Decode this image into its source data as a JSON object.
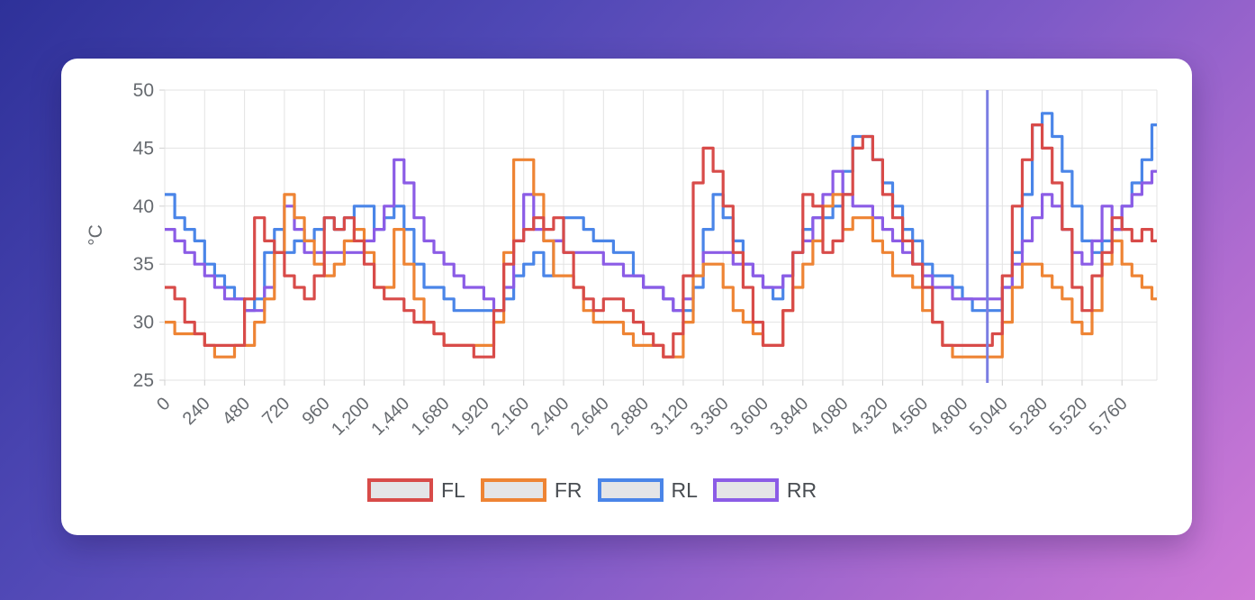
{
  "background": {
    "gradient_top_left": "#2e3199",
    "gradient_mid": "#7d5ac7",
    "gradient_bottom_right": "#cf7ad7",
    "card_color": "#ffffff"
  },
  "chart_data": {
    "type": "line",
    "step_interpolation": true,
    "title": "",
    "xlabel": "",
    "ylabel": "°C",
    "ylim": [
      25,
      50
    ],
    "y_ticks": [
      25,
      30,
      35,
      40,
      45,
      50
    ],
    "x_start": 0,
    "x_step": 60,
    "x_max": 5970,
    "x_tick_interval": 240,
    "x_ticks": [
      0,
      240,
      480,
      720,
      960,
      1200,
      1440,
      1680,
      1920,
      2160,
      2400,
      2640,
      2880,
      3120,
      3360,
      3600,
      3840,
      4080,
      4320,
      4560,
      4800,
      5040,
      5280,
      5520,
      5760
    ],
    "x_tick_labels": [
      "0",
      "240",
      "480",
      "720",
      "960",
      "1,200",
      "1,440",
      "1,680",
      "1,920",
      "2,160",
      "2,400",
      "2,640",
      "2,880",
      "3,120",
      "3,360",
      "3,600",
      "3,840",
      "4,080",
      "4,320",
      "4,560",
      "4,800",
      "5,040",
      "5,280",
      "5,520",
      "5,760"
    ],
    "grid": true,
    "grid_color": "#e3e3e3",
    "tick_text_color": "#666a6f",
    "legend_position": "bottom",
    "legend_swatch_fill": "#e4e5e7",
    "cursor_line": {
      "x": 4950,
      "color": "#7b7ee3"
    },
    "series": [
      {
        "name": "FL",
        "color": "#d84b49",
        "values": [
          33,
          32,
          30,
          29,
          28,
          28,
          28,
          28,
          32,
          39,
          37,
          36,
          34,
          33,
          32,
          34,
          39,
          38,
          39,
          37,
          35,
          33,
          32,
          32,
          31,
          30,
          30,
          29,
          28,
          28,
          28,
          27,
          27,
          31,
          35,
          37,
          38,
          39,
          38,
          39,
          36,
          33,
          32,
          31,
          32,
          32,
          31,
          30,
          29,
          28,
          27,
          29,
          34,
          42,
          45,
          43,
          40,
          36,
          33,
          30,
          28,
          28,
          31,
          36,
          41,
          40,
          36,
          37,
          41,
          45,
          46,
          44,
          41,
          39,
          37,
          35,
          33,
          30,
          28,
          28,
          28,
          28,
          28,
          29,
          34,
          40,
          44,
          47,
          45,
          42,
          38,
          33,
          31,
          34,
          36,
          39,
          38,
          37,
          38,
          37
        ]
      },
      {
        "name": "FR",
        "color": "#ee8434",
        "values": [
          30,
          29,
          29,
          29,
          28,
          27,
          27,
          28,
          28,
          30,
          32,
          36,
          41,
          39,
          37,
          35,
          34,
          35,
          37,
          38,
          36,
          33,
          33,
          38,
          35,
          32,
          30,
          29,
          28,
          28,
          28,
          28,
          28,
          30,
          36,
          44,
          44,
          41,
          37,
          34,
          34,
          33,
          31,
          30,
          30,
          30,
          29,
          28,
          28,
          28,
          27,
          27,
          30,
          34,
          35,
          35,
          33,
          31,
          30,
          29,
          28,
          28,
          31,
          33,
          35,
          37,
          40,
          41,
          38,
          39,
          39,
          37,
          36,
          34,
          34,
          33,
          31,
          30,
          28,
          27,
          27,
          27,
          27,
          27,
          30,
          33,
          35,
          35,
          34,
          33,
          32,
          30,
          29,
          31,
          35,
          37,
          35,
          34,
          33,
          32
        ]
      },
      {
        "name": "RL",
        "color": "#4a85e8",
        "values": [
          41,
          39,
          38,
          37,
          35,
          34,
          33,
          32,
          31,
          32,
          36,
          38,
          36,
          37,
          37,
          38,
          39,
          38,
          39,
          40,
          40,
          38,
          39,
          40,
          38,
          35,
          33,
          33,
          32,
          31,
          31,
          31,
          31,
          31,
          32,
          34,
          35,
          36,
          34,
          37,
          39,
          39,
          38,
          37,
          37,
          36,
          36,
          34,
          33,
          33,
          32,
          31,
          31,
          33,
          38,
          41,
          39,
          37,
          35,
          34,
          33,
          32,
          34,
          36,
          38,
          39,
          39,
          40,
          43,
          46,
          46,
          44,
          42,
          40,
          38,
          37,
          35,
          34,
          34,
          33,
          32,
          31,
          31,
          31,
          33,
          36,
          41,
          47,
          48,
          46,
          43,
          40,
          37,
          36,
          37,
          38,
          40,
          42,
          44,
          47
        ]
      },
      {
        "name": "RR",
        "color": "#8b5ce6",
        "values": [
          38,
          37,
          36,
          35,
          34,
          33,
          32,
          32,
          31,
          31,
          33,
          36,
          40,
          38,
          36,
          36,
          36,
          36,
          36,
          36,
          37,
          38,
          40,
          44,
          42,
          39,
          37,
          36,
          35,
          34,
          33,
          33,
          32,
          31,
          33,
          37,
          41,
          38,
          37,
          37,
          36,
          36,
          36,
          36,
          35,
          35,
          34,
          34,
          33,
          33,
          32,
          31,
          32,
          34,
          36,
          36,
          36,
          35,
          35,
          34,
          33,
          33,
          34,
          36,
          37,
          39,
          41,
          43,
          41,
          40,
          40,
          39,
          38,
          37,
          36,
          35,
          34,
          33,
          33,
          32,
          32,
          32,
          32,
          32,
          33,
          35,
          37,
          39,
          41,
          40,
          38,
          36,
          35,
          37,
          40,
          38,
          40,
          41,
          42,
          43
        ]
      }
    ]
  },
  "legend": {
    "items": [
      {
        "label": "FL"
      },
      {
        "label": "FR"
      },
      {
        "label": "RL"
      },
      {
        "label": "RR"
      }
    ]
  }
}
